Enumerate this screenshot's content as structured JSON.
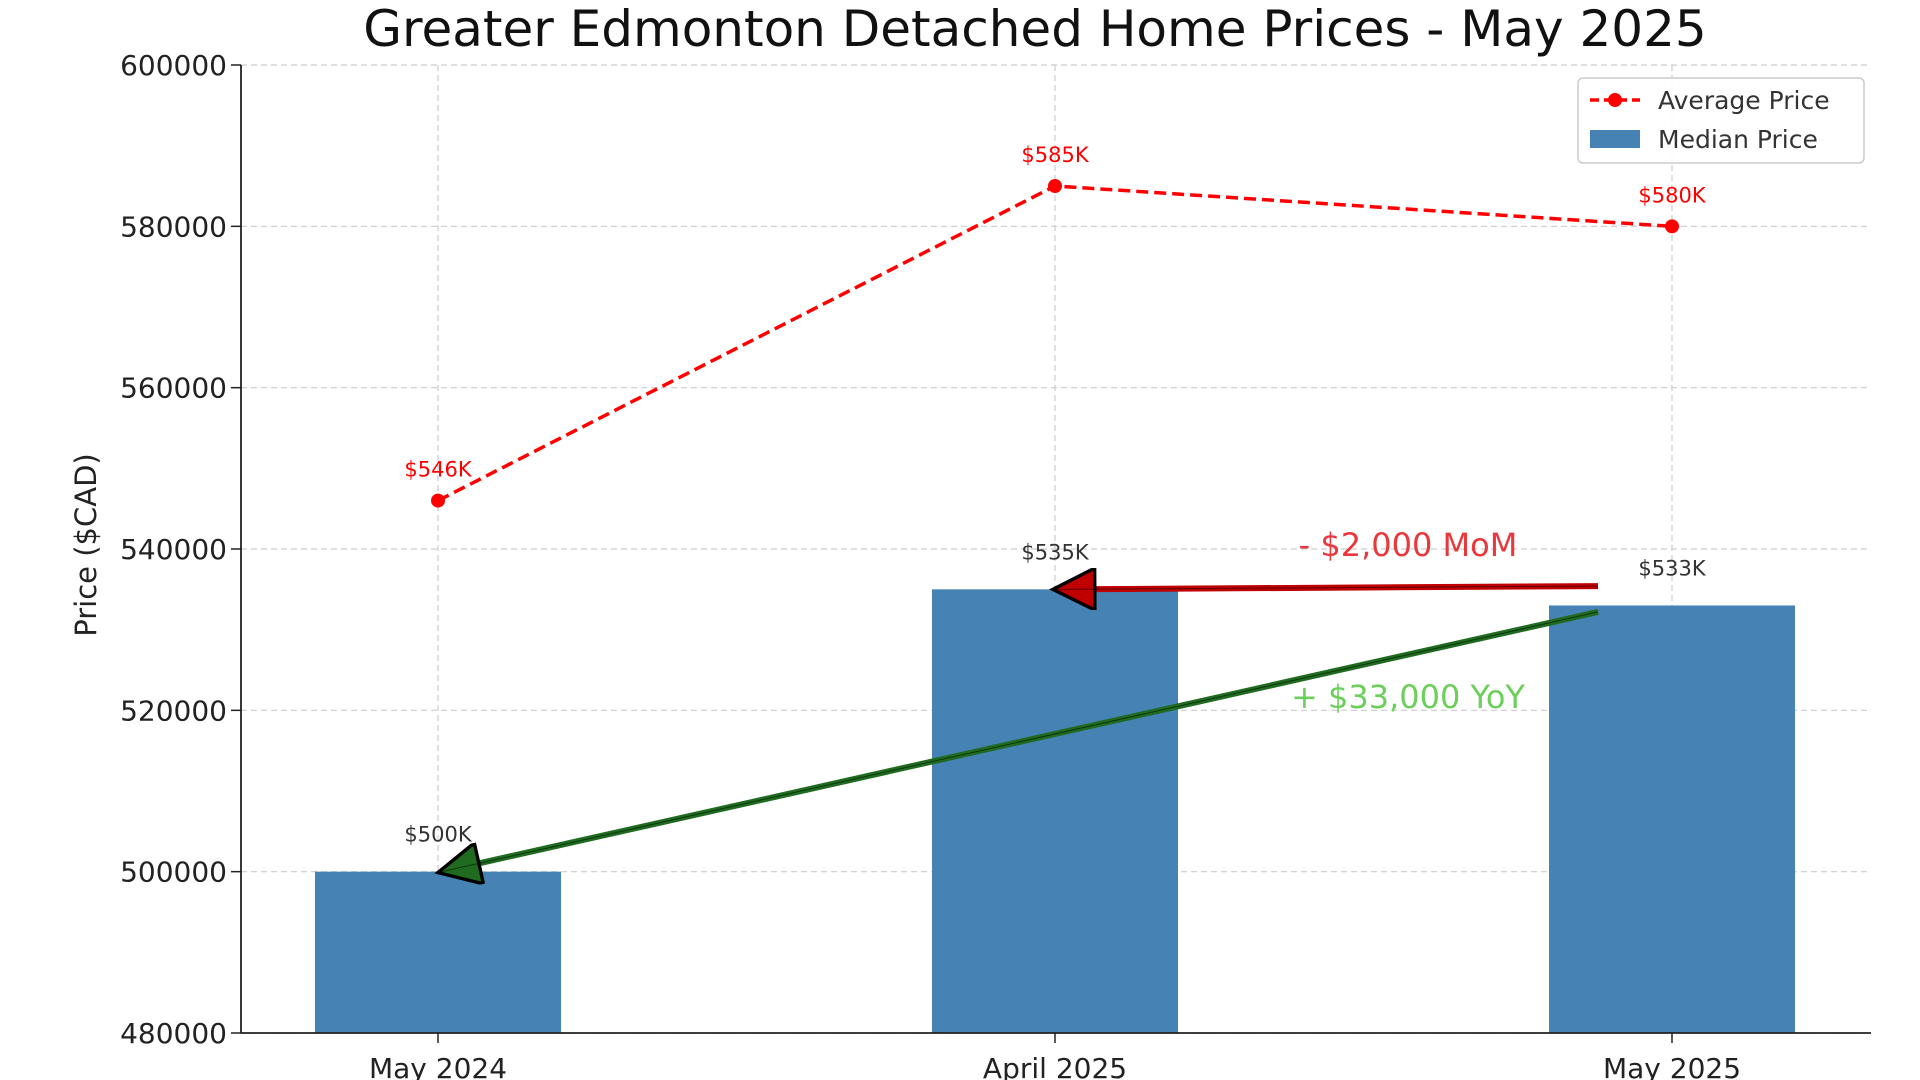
{
  "chart_data": {
    "type": "bar",
    "title": "Greater Edmonton Detached Home Prices - May 2025",
    "xlabel": "",
    "ylabel": "Price ($CAD)",
    "categories": [
      "May 2024",
      "April 2025",
      "May 2025"
    ],
    "ylim": [
      480000,
      600000
    ],
    "yticks": [
      480000,
      500000,
      520000,
      540000,
      560000,
      580000,
      600000
    ],
    "grid": true,
    "legend_position": "top-right",
    "series": [
      {
        "name": "Average Price",
        "type": "line",
        "style": "dashed",
        "color": "#ff0000",
        "values": [
          546000,
          585000,
          580000
        ],
        "labels": [
          "$546K",
          "$585K",
          "$580K"
        ]
      },
      {
        "name": "Median Price",
        "type": "bar",
        "color": "#4682b4",
        "values": [
          500000,
          535000,
          533000
        ],
        "labels": [
          "$500K",
          "$535K",
          "$533K"
        ]
      }
    ],
    "annotations": [
      {
        "text": "- $2,000 MoM",
        "color": "#e8383d",
        "from": "May 2025",
        "to": "April 2025",
        "arrow_color": "#c00000"
      },
      {
        "text": "+ $33,000 YoY",
        "color": "#6ccf5a",
        "from": "May 2025",
        "to": "May 2024",
        "arrow_color": "#1f6b1f"
      }
    ]
  }
}
